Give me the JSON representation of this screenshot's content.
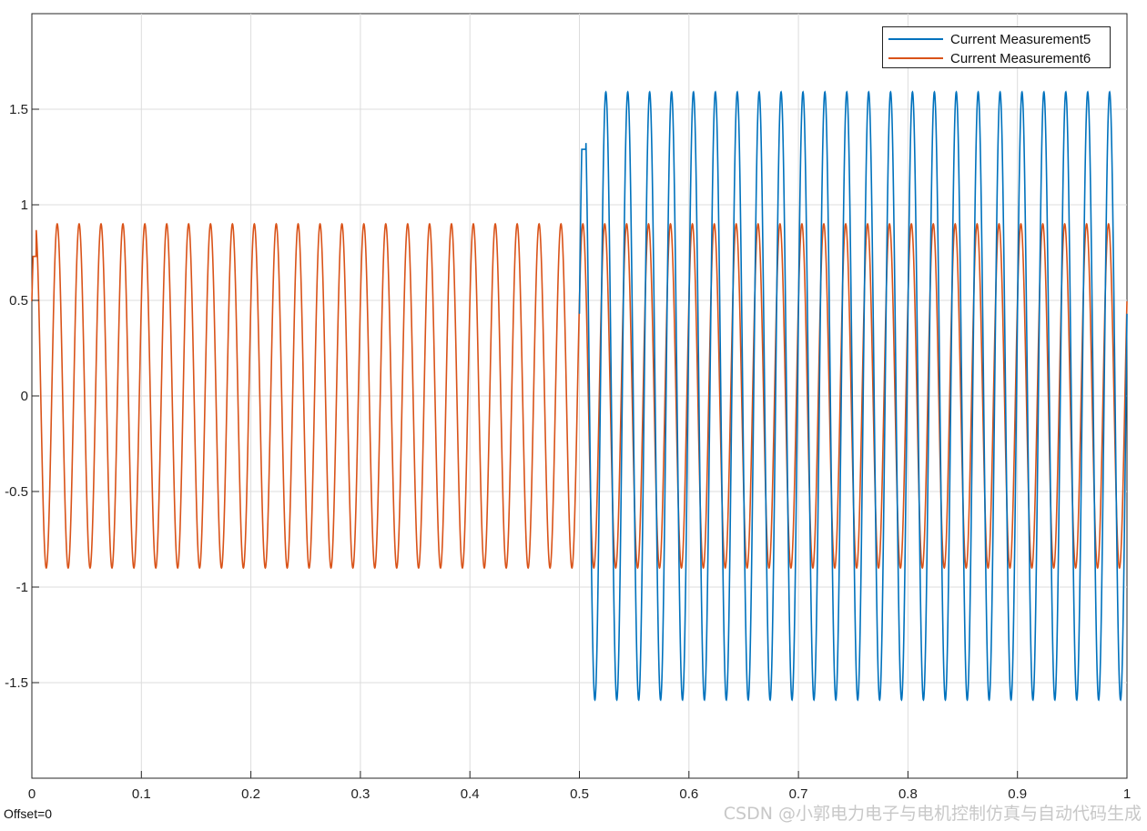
{
  "chart_data": {
    "type": "line",
    "title": "",
    "xlabel": "",
    "ylabel": "",
    "xlim": [
      0,
      1
    ],
    "ylim": [
      -2,
      2
    ],
    "grid": true,
    "legend_position": "top-right",
    "x_ticks": [
      "0",
      "0.1",
      "0.2",
      "0.3",
      "0.4",
      "0.5",
      "0.6",
      "0.7",
      "0.8",
      "0.9",
      "1"
    ],
    "y_ticks": [
      "-1.5",
      "-1",
      "-0.5",
      "0",
      "0.5",
      "1",
      "1.5"
    ],
    "series": [
      {
        "name": "Current Measurement5",
        "color": "#0072BD",
        "description_values": {
          "active_from_x": 0.5,
          "first_peak": 1.29,
          "amplitude": 1.59,
          "frequency_hz": 50,
          "value_at_start": 0.43
        }
      },
      {
        "name": "Current Measurement6",
        "color": "#D95319",
        "description_values": {
          "first_peak": 0.73,
          "amplitude": 0.9,
          "frequency_hz": 50
        }
      }
    ]
  },
  "footer": {
    "offset_label": "Offset=0",
    "watermark": "CSDN @小郭电力电子与电机控制仿真与自动代码生成"
  }
}
